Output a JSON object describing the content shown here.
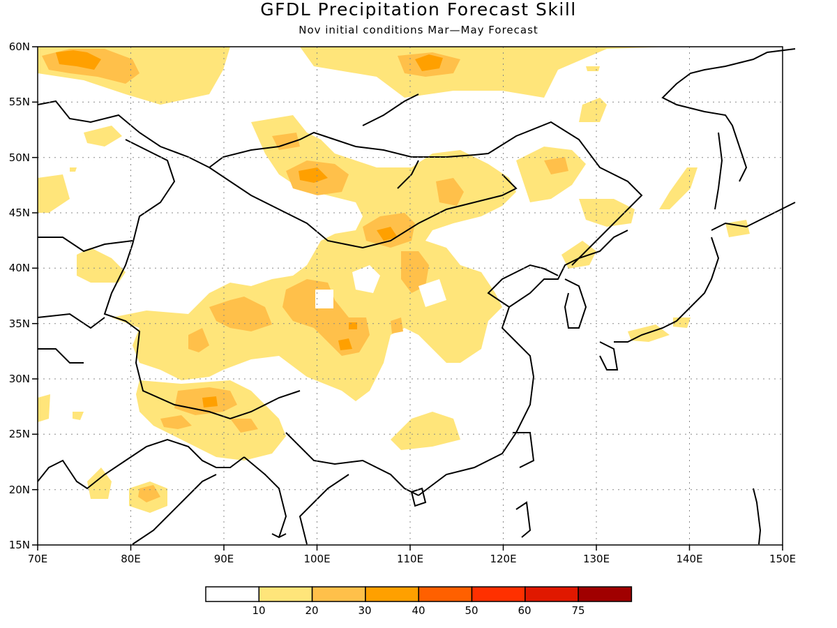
{
  "title": "GFDL Precipitation Forecast Skill",
  "subtitle": "Nov initial conditions  Mar—May Forecast",
  "map": {
    "region": {
      "lon_min": 70,
      "lon_max": 150,
      "lat_min": 15,
      "lat_max": 60
    },
    "lon_ticks": [
      "70E",
      "80E",
      "90E",
      "100E",
      "110E",
      "120E",
      "130E",
      "140E",
      "150E"
    ],
    "lat_ticks": [
      "60N",
      "55N",
      "50N",
      "45N",
      "40N",
      "35N",
      "30N",
      "25N",
      "20N",
      "15N"
    ],
    "grid": "dotted"
  },
  "legend": {
    "colors": [
      "#ffffff",
      "#ffe57a",
      "#ffc04a",
      "#ffa000",
      "#ff6000",
      "#ff3000",
      "#e01800",
      "#a00000"
    ],
    "labels": [
      "10",
      "20",
      "30",
      "40",
      "50",
      "60",
      "75"
    ]
  }
}
